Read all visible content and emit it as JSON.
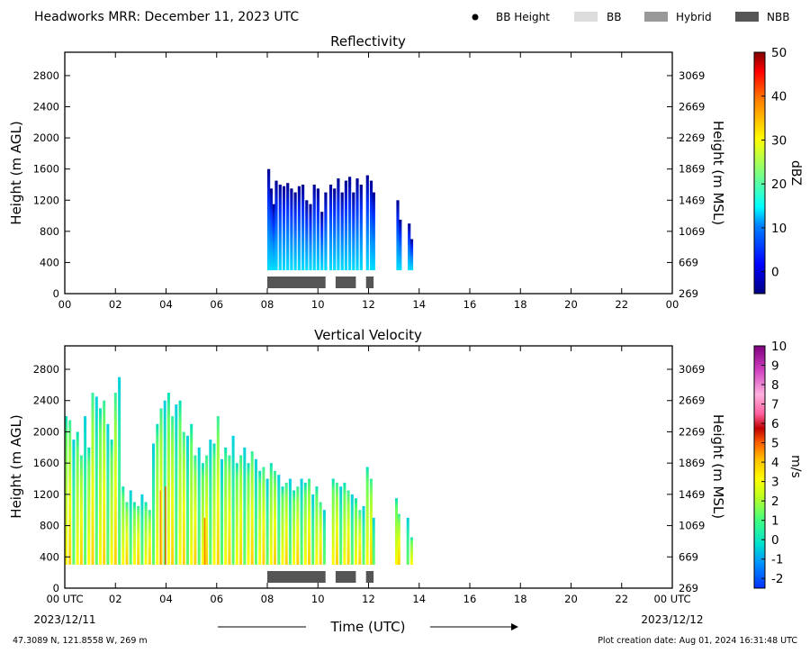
{
  "header": {
    "title": "Headworks MRR:  December 11, 2023 UTC",
    "legend": [
      {
        "label": "BB Height",
        "marker": "dot",
        "color": "#000000"
      },
      {
        "label": "BB",
        "marker": "swatch",
        "color": "#dcdcdc"
      },
      {
        "label": "Hybrid",
        "marker": "swatch",
        "color": "#999999"
      },
      {
        "label": "NBB",
        "marker": "swatch",
        "color": "#555555"
      }
    ]
  },
  "footer": {
    "location": "47.3089 N, 121.8558 W, 269 m",
    "created": "Plot creation date: Aug 01, 2024 16:31:48 UTC"
  },
  "colors": {
    "nbb_bar": "#555555",
    "axes": "#000000"
  },
  "chart_data": [
    {
      "type": "heatmap",
      "title": "Reflectivity",
      "ylabel": "Height (m AGL)",
      "ylabel_right": "Height (m MSL)",
      "xlim": [
        0,
        24
      ],
      "ylim": [
        0,
        3100
      ],
      "x_ticks": [
        "00",
        "02",
        "04",
        "06",
        "08",
        "10",
        "12",
        "14",
        "16",
        "18",
        "20",
        "22",
        "00"
      ],
      "y_ticks": [
        "0",
        "400",
        "800",
        "1200",
        "1600",
        "2000",
        "2400",
        "2800"
      ],
      "y_ticks_right": [
        "269",
        "669",
        "1069",
        "1469",
        "1869",
        "2269",
        "2669",
        "3069"
      ],
      "colorbar": {
        "label": "dBZ",
        "range": [
          -5,
          50
        ],
        "ticks": [
          "0",
          "10",
          "20",
          "30",
          "40",
          "50"
        ]
      },
      "nbb_segments": [
        [
          8.0,
          10.3
        ],
        [
          10.7,
          11.5
        ],
        [
          11.9,
          12.2
        ]
      ],
      "echo_columns": [
        {
          "x": 8.0,
          "top": 1600
        },
        {
          "x": 8.1,
          "top": 1350
        },
        {
          "x": 8.2,
          "top": 1150
        },
        {
          "x": 8.3,
          "top": 1450
        },
        {
          "x": 8.45,
          "top": 1400
        },
        {
          "x": 8.6,
          "top": 1380
        },
        {
          "x": 8.75,
          "top": 1420
        },
        {
          "x": 8.9,
          "top": 1350
        },
        {
          "x": 9.05,
          "top": 1300
        },
        {
          "x": 9.2,
          "top": 1380
        },
        {
          "x": 9.35,
          "top": 1400
        },
        {
          "x": 9.5,
          "top": 1200
        },
        {
          "x": 9.65,
          "top": 1150
        },
        {
          "x": 9.8,
          "top": 1400
        },
        {
          "x": 9.95,
          "top": 1350
        },
        {
          "x": 10.1,
          "top": 1050
        },
        {
          "x": 10.25,
          "top": 1300
        },
        {
          "x": 10.45,
          "top": 1400
        },
        {
          "x": 10.6,
          "top": 1350
        },
        {
          "x": 10.75,
          "top": 1480
        },
        {
          "x": 10.9,
          "top": 1300
        },
        {
          "x": 11.05,
          "top": 1450
        },
        {
          "x": 11.2,
          "top": 1500
        },
        {
          "x": 11.35,
          "top": 1300
        },
        {
          "x": 11.5,
          "top": 1480
        },
        {
          "x": 11.65,
          "top": 1400
        },
        {
          "x": 11.9,
          "top": 1520
        },
        {
          "x": 12.05,
          "top": 1450
        },
        {
          "x": 12.15,
          "top": 1300
        },
        {
          "x": 13.1,
          "top": 1200
        },
        {
          "x": 13.2,
          "top": 950
        },
        {
          "x": 13.55,
          "top": 900
        },
        {
          "x": 13.65,
          "top": 700
        }
      ]
    },
    {
      "type": "heatmap",
      "title": "Vertical Velocity",
      "ylabel": "Height (m AGL)",
      "ylabel_right": "Height (m MSL)",
      "xlabel": "Time (UTC)",
      "xlim": [
        0,
        24
      ],
      "ylim": [
        0,
        3100
      ],
      "x_ticks": [
        "00 UTC",
        "02",
        "04",
        "06",
        "08",
        "10",
        "12",
        "14",
        "16",
        "18",
        "20",
        "22",
        "00 UTC"
      ],
      "x_date_left": "2023/12/11",
      "x_date_right": "2023/12/12",
      "y_ticks": [
        "0",
        "400",
        "800",
        "1200",
        "1600",
        "2000",
        "2400",
        "2800"
      ],
      "y_ticks_right": [
        "269",
        "669",
        "1069",
        "1469",
        "1869",
        "2269",
        "2669",
        "3069"
      ],
      "colorbar": {
        "label": "m/s",
        "range": [
          -2.5,
          10
        ],
        "ticks": [
          "-2",
          "-1",
          "0",
          "1",
          "2",
          "3",
          "4",
          "5",
          "6",
          "7",
          "8",
          "9",
          "10"
        ]
      },
      "nbb_segments": [
        [
          8.0,
          10.3
        ],
        [
          10.7,
          11.5
        ],
        [
          11.9,
          12.2
        ]
      ],
      "echo_columns": [
        {
          "x": 0.0,
          "top": 2200
        },
        {
          "x": 0.15,
          "top": 2150
        },
        {
          "x": 0.3,
          "top": 1900
        },
        {
          "x": 0.45,
          "top": 2000
        },
        {
          "x": 0.6,
          "top": 1700
        },
        {
          "x": 0.75,
          "top": 2200
        },
        {
          "x": 0.9,
          "top": 1800
        },
        {
          "x": 1.05,
          "top": 2500
        },
        {
          "x": 1.2,
          "top": 2450
        },
        {
          "x": 1.35,
          "top": 2300
        },
        {
          "x": 1.5,
          "top": 2400
        },
        {
          "x": 1.65,
          "top": 2100
        },
        {
          "x": 1.8,
          "top": 1900
        },
        {
          "x": 1.95,
          "top": 2500
        },
        {
          "x": 2.1,
          "top": 2700
        },
        {
          "x": 2.25,
          "top": 1300
        },
        {
          "x": 2.4,
          "top": 1100
        },
        {
          "x": 2.55,
          "top": 1250
        },
        {
          "x": 2.7,
          "top": 1100
        },
        {
          "x": 2.85,
          "top": 1050
        },
        {
          "x": 3.0,
          "top": 1200
        },
        {
          "x": 3.15,
          "top": 1100
        },
        {
          "x": 3.3,
          "top": 1000
        },
        {
          "x": 3.45,
          "top": 1850
        },
        {
          "x": 3.6,
          "top": 2100
        },
        {
          "x": 3.75,
          "top": 2300
        },
        {
          "x": 3.9,
          "top": 2400
        },
        {
          "x": 4.05,
          "top": 2500
        },
        {
          "x": 4.2,
          "top": 2200
        },
        {
          "x": 4.35,
          "top": 2350
        },
        {
          "x": 4.5,
          "top": 2400
        },
        {
          "x": 4.65,
          "top": 2000
        },
        {
          "x": 4.8,
          "top": 1950
        },
        {
          "x": 4.95,
          "top": 2100
        },
        {
          "x": 5.1,
          "top": 1700
        },
        {
          "x": 5.25,
          "top": 1800
        },
        {
          "x": 5.4,
          "top": 1600
        },
        {
          "x": 5.55,
          "top": 1700
        },
        {
          "x": 5.7,
          "top": 1900
        },
        {
          "x": 5.85,
          "top": 1850
        },
        {
          "x": 6.0,
          "top": 2200
        },
        {
          "x": 6.15,
          "top": 1650
        },
        {
          "x": 6.3,
          "top": 1800
        },
        {
          "x": 6.45,
          "top": 1700
        },
        {
          "x": 6.6,
          "top": 1950
        },
        {
          "x": 6.75,
          "top": 1600
        },
        {
          "x": 6.9,
          "top": 1700
        },
        {
          "x": 7.05,
          "top": 1800
        },
        {
          "x": 7.2,
          "top": 1600
        },
        {
          "x": 7.35,
          "top": 1750
        },
        {
          "x": 7.5,
          "top": 1650
        },
        {
          "x": 7.65,
          "top": 1500
        },
        {
          "x": 7.8,
          "top": 1550
        },
        {
          "x": 7.95,
          "top": 1400
        },
        {
          "x": 8.1,
          "top": 1600
        },
        {
          "x": 8.25,
          "top": 1500
        },
        {
          "x": 8.4,
          "top": 1450
        },
        {
          "x": 8.55,
          "top": 1300
        },
        {
          "x": 8.7,
          "top": 1350
        },
        {
          "x": 8.85,
          "top": 1400
        },
        {
          "x": 9.0,
          "top": 1250
        },
        {
          "x": 9.15,
          "top": 1300
        },
        {
          "x": 9.3,
          "top": 1400
        },
        {
          "x": 9.45,
          "top": 1350
        },
        {
          "x": 9.6,
          "top": 1400
        },
        {
          "x": 9.75,
          "top": 1200
        },
        {
          "x": 9.9,
          "top": 1300
        },
        {
          "x": 10.05,
          "top": 1100
        },
        {
          "x": 10.2,
          "top": 1000
        },
        {
          "x": 10.55,
          "top": 1400
        },
        {
          "x": 10.7,
          "top": 1350
        },
        {
          "x": 10.85,
          "top": 1300
        },
        {
          "x": 11.0,
          "top": 1350
        },
        {
          "x": 11.15,
          "top": 1250
        },
        {
          "x": 11.3,
          "top": 1200
        },
        {
          "x": 11.45,
          "top": 1150
        },
        {
          "x": 11.6,
          "top": 1000
        },
        {
          "x": 11.75,
          "top": 1050
        },
        {
          "x": 11.9,
          "top": 1550
        },
        {
          "x": 12.05,
          "top": 1400
        },
        {
          "x": 12.15,
          "top": 900
        },
        {
          "x": 13.05,
          "top": 1150
        },
        {
          "x": 13.15,
          "top": 950
        },
        {
          "x": 13.5,
          "top": 900
        },
        {
          "x": 13.65,
          "top": 650
        }
      ]
    }
  ]
}
